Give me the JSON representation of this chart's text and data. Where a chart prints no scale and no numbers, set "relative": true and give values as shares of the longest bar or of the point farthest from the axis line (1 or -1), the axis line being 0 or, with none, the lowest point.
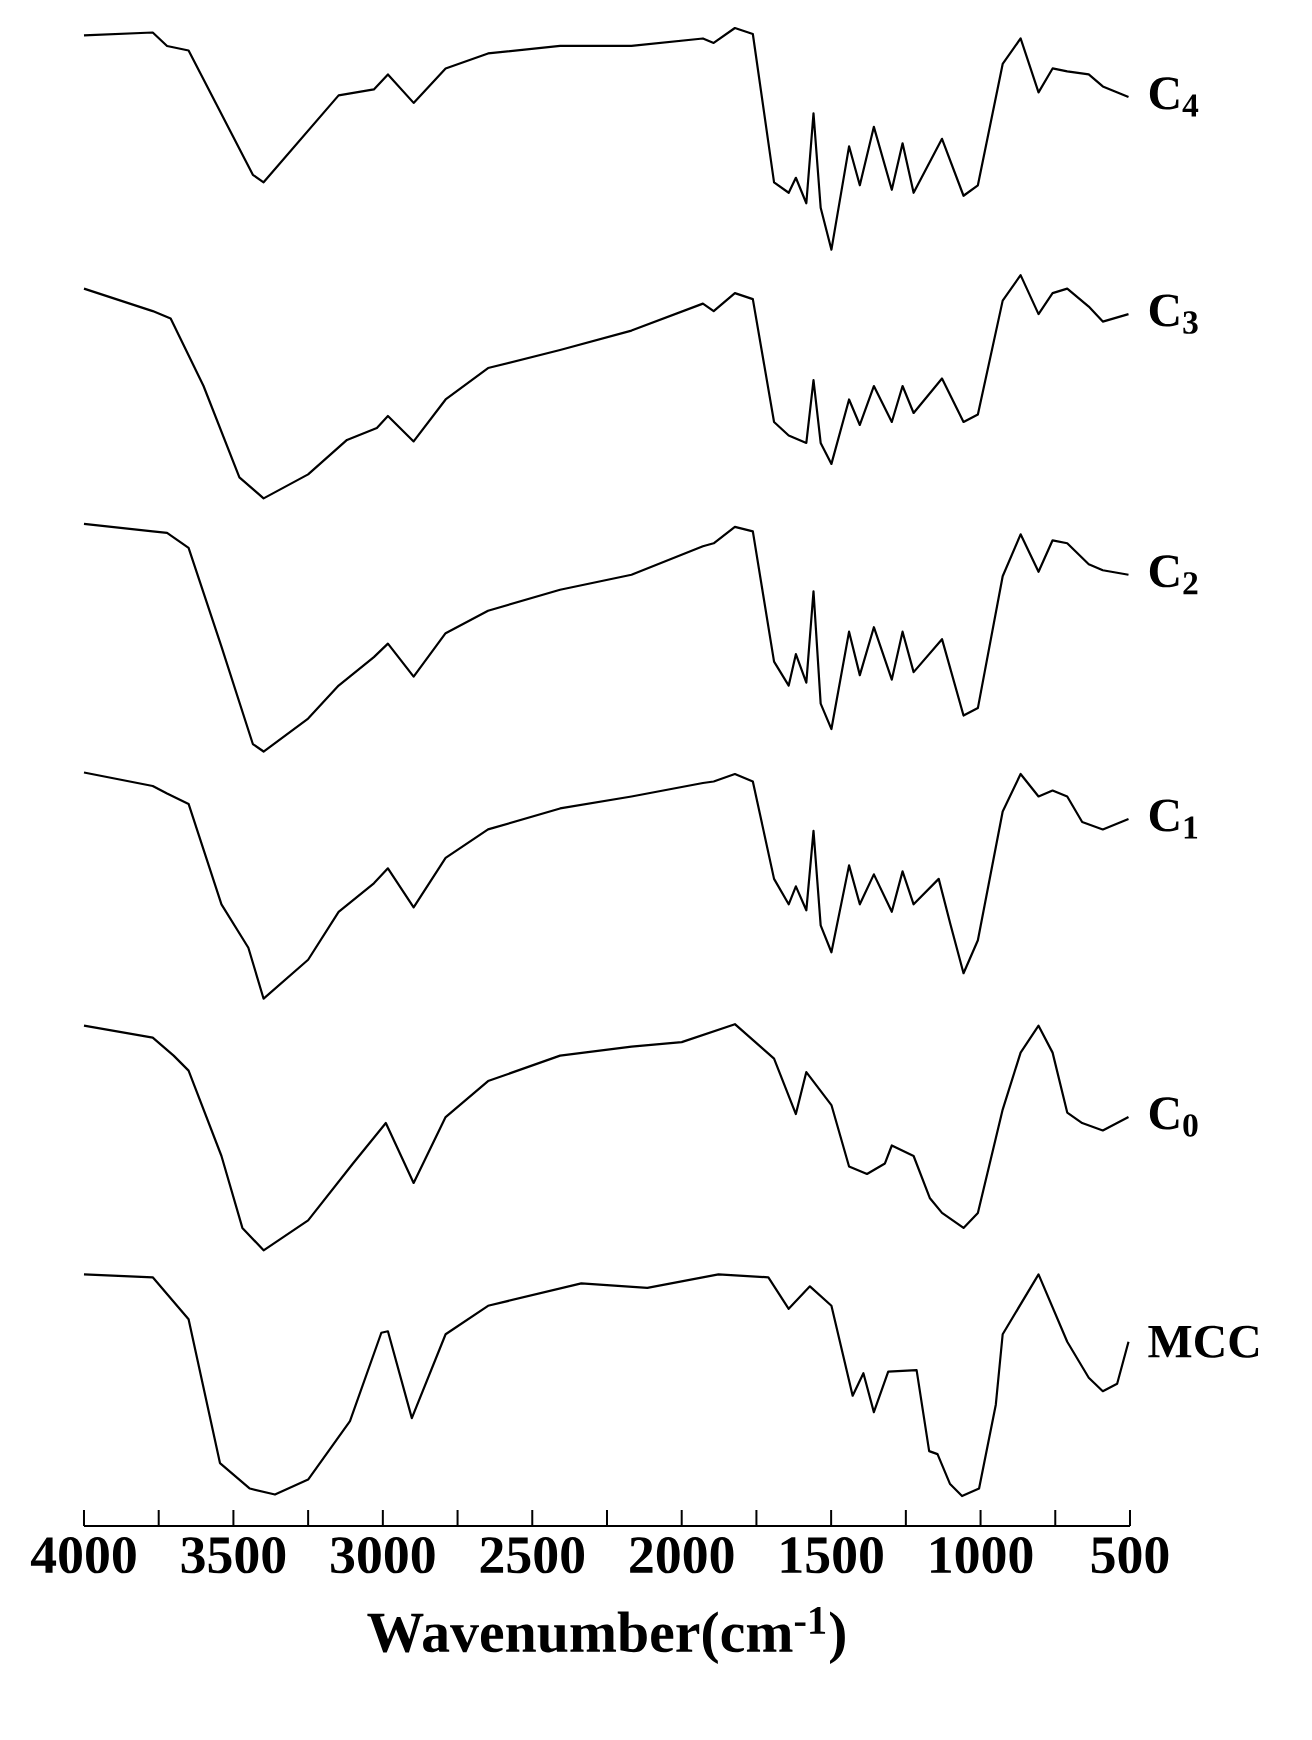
{
  "chart_data": {
    "type": "line",
    "relative": true,
    "xlabel": "Wavenumber(cm$^{-1}$)",
    "xlim": [
      4000,
      500
    ],
    "xticks": [
      4000,
      {
        "value": 3750,
        "label": null
      },
      3500,
      {
        "value": 3250,
        "label": null
      },
      3000,
      {
        "value": 2750,
        "label": null
      },
      2500,
      {
        "value": 2250,
        "label": null
      },
      2000,
      {
        "value": 1750,
        "label": null
      },
      1500,
      {
        "value": 1250,
        "label": null
      },
      1000,
      {
        "value": 750,
        "label": null
      },
      500
    ],
    "series": [
      {
        "name": "C$_{4}$",
        "color": "#000000",
        "x": [
          4000,
          3770,
          3722,
          3650,
          3435,
          3399,
          3148,
          3030,
          2983,
          2897,
          2790,
          2648,
          2407,
          2168,
          1929,
          1893,
          1822,
          1762,
          1691,
          1642,
          1618,
          1583,
          1559,
          1535,
          1499,
          1440,
          1404,
          1357,
          1297,
          1261,
          1224,
          1129,
          1057,
          1009,
          926,
          866,
          806,
          759,
          710,
          638,
          591,
          505
        ],
        "values": [
          0.995,
          0.997,
          0.988,
          0.985,
          0.902,
          0.897,
          0.955,
          0.959,
          0.969,
          0.95,
          0.973,
          0.983,
          0.988,
          0.988,
          0.993,
          0.99,
          1,
          0.996,
          0.897,
          0.89,
          0.9,
          0.883,
          0.943,
          0.88,
          0.852,
          0.921,
          0.895,
          0.934,
          0.892,
          0.923,
          0.89,
          0.926,
          0.888,
          0.895,
          0.976,
          0.993,
          0.957,
          0.973,
          0.971,
          0.969,
          0.961,
          0.954
        ]
      },
      {
        "name": "C$_{3}$",
        "color": "#000000",
        "x": [
          4000,
          3770,
          3710,
          3600,
          3480,
          3399,
          3250,
          3120,
          3020,
          2983,
          2897,
          2790,
          2648,
          2407,
          2168,
          1929,
          1893,
          1822,
          1762,
          1691,
          1642,
          1583,
          1559,
          1535,
          1499,
          1440,
          1404,
          1357,
          1297,
          1261,
          1224,
          1129,
          1057,
          1009,
          926,
          866,
          806,
          759,
          710,
          638,
          591,
          505
        ],
        "values": [
          0.826,
          0.811,
          0.806,
          0.761,
          0.7,
          0.686,
          0.702,
          0.725,
          0.733,
          0.741,
          0.724,
          0.752,
          0.773,
          0.785,
          0.798,
          0.816,
          0.811,
          0.823,
          0.819,
          0.737,
          0.728,
          0.723,
          0.765,
          0.723,
          0.709,
          0.752,
          0.735,
          0.761,
          0.737,
          0.761,
          0.743,
          0.766,
          0.737,
          0.742,
          0.818,
          0.835,
          0.809,
          0.823,
          0.826,
          0.814,
          0.804,
          0.809
        ]
      },
      {
        "name": "C$_{2}$",
        "color": "#000000",
        "x": [
          4000,
          3770,
          3722,
          3650,
          3540,
          3435,
          3399,
          3250,
          3148,
          3030,
          2983,
          2897,
          2790,
          2648,
          2407,
          2168,
          1929,
          1893,
          1822,
          1762,
          1691,
          1642,
          1618,
          1583,
          1559,
          1535,
          1499,
          1440,
          1404,
          1357,
          1297,
          1261,
          1224,
          1129,
          1057,
          1009,
          926,
          866,
          806,
          759,
          710,
          638,
          591,
          505
        ],
        "values": [
          0.669,
          0.664,
          0.663,
          0.653,
          0.587,
          0.522,
          0.517,
          0.539,
          0.561,
          0.58,
          0.589,
          0.567,
          0.596,
          0.611,
          0.625,
          0.635,
          0.654,
          0.656,
          0.667,
          0.664,
          0.577,
          0.561,
          0.582,
          0.563,
          0.624,
          0.549,
          0.532,
          0.597,
          0.568,
          0.6,
          0.565,
          0.597,
          0.57,
          0.592,
          0.541,
          0.546,
          0.634,
          0.662,
          0.637,
          0.658,
          0.656,
          0.642,
          0.638,
          0.635
        ]
      },
      {
        "name": "C$_{1}$",
        "color": "#000000",
        "x": [
          4000,
          3770,
          3722,
          3650,
          3540,
          3450,
          3399,
          3250,
          3148,
          3030,
          2983,
          2897,
          2790,
          2648,
          2407,
          2168,
          1929,
          1893,
          1822,
          1762,
          1691,
          1642,
          1618,
          1583,
          1559,
          1535,
          1499,
          1440,
          1404,
          1357,
          1297,
          1261,
          1224,
          1140,
          1100,
          1057,
          1009,
          926,
          866,
          806,
          759,
          710,
          660,
          591,
          505
        ],
        "values": [
          0.503,
          0.494,
          0.489,
          0.482,
          0.415,
          0.386,
          0.352,
          0.378,
          0.41,
          0.429,
          0.439,
          0.413,
          0.446,
          0.465,
          0.479,
          0.487,
          0.496,
          0.497,
          0.502,
          0.497,
          0.432,
          0.415,
          0.427,
          0.411,
          0.464,
          0.401,
          0.383,
          0.441,
          0.415,
          0.435,
          0.41,
          0.437,
          0.415,
          0.432,
          0.401,
          0.369,
          0.391,
          0.477,
          0.502,
          0.487,
          0.491,
          0.487,
          0.47,
          0.465,
          0.472
        ]
      },
      {
        "name": "C$_{0}$",
        "color": "#000000",
        "x": [
          4000,
          3770,
          3700,
          3650,
          3540,
          3470,
          3399,
          3250,
          3100,
          2990,
          2897,
          2790,
          2648,
          2407,
          2168,
          2000,
          1822,
          1691,
          1618,
          1583,
          1499,
          1440,
          1380,
          1320,
          1297,
          1224,
          1170,
          1129,
          1057,
          1009,
          926,
          866,
          806,
          759,
          710,
          660,
          591,
          505
        ],
        "values": [
          0.334,
          0.326,
          0.314,
          0.304,
          0.247,
          0.199,
          0.184,
          0.204,
          0.242,
          0.269,
          0.229,
          0.273,
          0.297,
          0.314,
          0.32,
          0.323,
          0.335,
          0.312,
          0.275,
          0.303,
          0.281,
          0.24,
          0.235,
          0.242,
          0.254,
          0.247,
          0.219,
          0.209,
          0.199,
          0.209,
          0.278,
          0.316,
          0.334,
          0.316,
          0.276,
          0.269,
          0.264,
          0.273
        ]
      },
      {
        "name": "MCC",
        "color": "#000000",
        "x": [
          4000,
          3770,
          3650,
          3545,
          3445,
          3361,
          3250,
          3110,
          3005,
          2983,
          2903,
          2790,
          2648,
          2336,
          2115,
          1877,
          1710,
          1642,
          1571,
          1499,
          1428,
          1392,
          1357,
          1309,
          1214,
          1172,
          1144,
          1102,
          1062,
          1005,
          949,
          926,
          806,
          710,
          638,
          591,
          543,
          505
        ],
        "values": [
          0.168,
          0.166,
          0.138,
          0.042,
          0.025,
          0.021,
          0.031,
          0.07,
          0.129,
          0.13,
          0.072,
          0.128,
          0.147,
          0.162,
          0.159,
          0.168,
          0.166,
          0.145,
          0.16,
          0.147,
          0.087,
          0.102,
          0.076,
          0.103,
          0.104,
          0.05,
          0.048,
          0.028,
          0.02,
          0.025,
          0.081,
          0.128,
          0.168,
          0.123,
          0.099,
          0.09,
          0.095,
          0.123
        ]
      }
    ]
  }
}
